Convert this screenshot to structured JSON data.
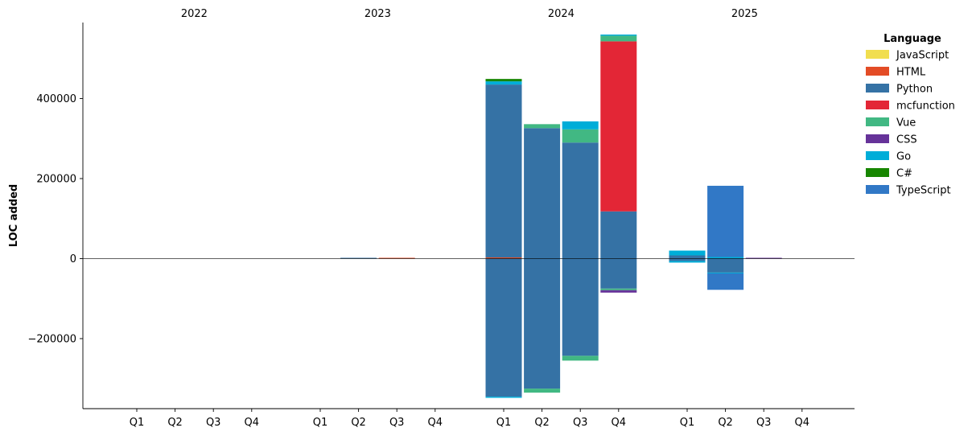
{
  "chart_data": {
    "type": "bar",
    "stacked": true,
    "diverging": true,
    "ylabel": "LOC added",
    "year_labels": [
      "2022",
      "2023",
      "2024",
      "2025"
    ],
    "quarter_labels": [
      "Q1",
      "Q2",
      "Q3",
      "Q4"
    ],
    "ylim": [
      -375000,
      590000
    ],
    "yticks": [
      -200000,
      0,
      200000,
      400000
    ],
    "ytick_labels": [
      "−200000",
      "0",
      "200000",
      "400000"
    ],
    "legend": {
      "title": "Language",
      "placement": "top-right outside",
      "entries": [
        {
          "name": "JavaScript",
          "color": "#f1de4f"
        },
        {
          "name": "HTML",
          "color": "#e34c26"
        },
        {
          "name": "Python",
          "color": "#3572a5"
        },
        {
          "name": "mcfunction",
          "color": "#e32636"
        },
        {
          "name": "Vue",
          "color": "#41b883"
        },
        {
          "name": "CSS",
          "color": "#663399"
        },
        {
          "name": "Go",
          "color": "#00add8"
        },
        {
          "name": "C#",
          "color": "#178600"
        },
        {
          "name": "TypeScript",
          "color": "#3178c6"
        }
      ]
    },
    "bars": [
      {
        "year": "2023",
        "quarter": "Q2",
        "positive": [
          {
            "lang": "Python",
            "value": 2000
          }
        ],
        "negative": []
      },
      {
        "year": "2023",
        "quarter": "Q3",
        "positive": [
          {
            "lang": "HTML",
            "value": 2000
          }
        ],
        "negative": []
      },
      {
        "year": "2024",
        "quarter": "Q1",
        "positive": [
          {
            "lang": "HTML",
            "value": 3000
          },
          {
            "lang": "Python",
            "value": 432000
          },
          {
            "lang": "Go",
            "value": 8000
          },
          {
            "lang": "C#",
            "value": 6000
          }
        ],
        "negative": [
          {
            "lang": "Python",
            "value": -345000
          },
          {
            "lang": "Go",
            "value": -3000
          }
        ]
      },
      {
        "year": "2024",
        "quarter": "Q2",
        "positive": [
          {
            "lang": "Python",
            "value": 326000
          },
          {
            "lang": "Vue",
            "value": 10000
          }
        ],
        "negative": [
          {
            "lang": "Python",
            "value": -325000
          },
          {
            "lang": "Vue",
            "value": -10000
          }
        ]
      },
      {
        "year": "2024",
        "quarter": "Q3",
        "positive": [
          {
            "lang": "Python",
            "value": 290000
          },
          {
            "lang": "Vue",
            "value": 33000
          },
          {
            "lang": "Go",
            "value": 20000
          }
        ],
        "negative": [
          {
            "lang": "Python",
            "value": -243000
          },
          {
            "lang": "Vue",
            "value": -12000
          }
        ]
      },
      {
        "year": "2024",
        "quarter": "Q4",
        "positive": [
          {
            "lang": "Python",
            "value": 118000
          },
          {
            "lang": "mcfunction",
            "value": 425000
          },
          {
            "lang": "Vue",
            "value": 14000
          },
          {
            "lang": "Go",
            "value": 3000
          }
        ],
        "negative": [
          {
            "lang": "Python",
            "value": -75000
          },
          {
            "lang": "Vue",
            "value": -4000
          },
          {
            "lang": "CSS",
            "value": -6000
          }
        ]
      },
      {
        "year": "2025",
        "quarter": "Q1",
        "positive": [
          {
            "lang": "Python",
            "value": 8000
          },
          {
            "lang": "Go",
            "value": 12000
          }
        ],
        "negative": [
          {
            "lang": "Python",
            "value": -6000
          },
          {
            "lang": "Go",
            "value": -4000
          }
        ]
      },
      {
        "year": "2025",
        "quarter": "Q2",
        "positive": [
          {
            "lang": "Go",
            "value": 4000
          },
          {
            "lang": "TypeScript",
            "value": 178000
          }
        ],
        "negative": [
          {
            "lang": "Python",
            "value": -35000
          },
          {
            "lang": "Go",
            "value": -2000
          },
          {
            "lang": "TypeScript",
            "value": -41000
          }
        ]
      },
      {
        "year": "2025",
        "quarter": "Q3",
        "positive": [
          {
            "lang": "CSS",
            "value": 2000
          }
        ],
        "negative": []
      }
    ]
  }
}
